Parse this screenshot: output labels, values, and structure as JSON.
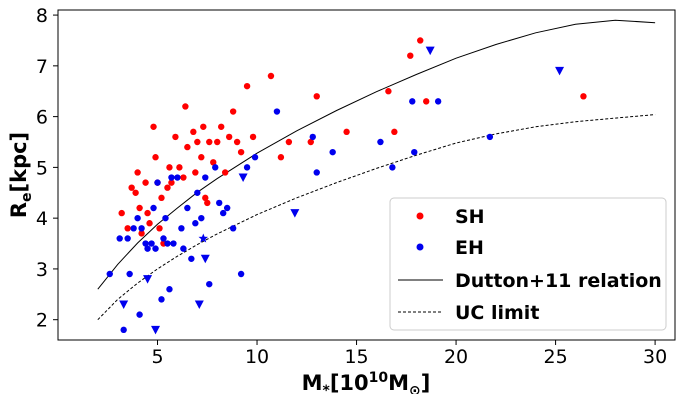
{
  "chart_data": {
    "type": "scatter",
    "xlabel_main": "M",
    "xlabel_sub": "*",
    "xlabel_rest": "[10",
    "xlabel_sup": "10",
    "xlabel_unit": "M",
    "xlabel_unit_sub": "⊙",
    "xlabel_end": "]",
    "ylabel_main": "R",
    "ylabel_sub": "e",
    "ylabel_rest": "[kpc]",
    "xlim": [
      0,
      31
    ],
    "ylim": [
      1.6,
      8.1
    ],
    "x_ticks": [
      "5",
      "10",
      "15",
      "20",
      "25",
      "30"
    ],
    "y_ticks": [
      "2",
      "3",
      "4",
      "5",
      "6",
      "7",
      "8"
    ],
    "x_tick_values": [
      5,
      10,
      15,
      20,
      25,
      30
    ],
    "y_tick_values": [
      2,
      3,
      4,
      5,
      6,
      7,
      8
    ],
    "colors": {
      "SH": "#ff0000",
      "EH": "#0000ee",
      "line": "#000000"
    },
    "legend_position": "lower-right",
    "legend": [
      {
        "label": "SH",
        "marker": "dot",
        "color": "#ff0000"
      },
      {
        "label": "EH",
        "marker": "dot",
        "color": "#0000ee"
      },
      {
        "label": "Dutton+11 relation",
        "marker": "solid-line",
        "color": "#000000"
      },
      {
        "label": "UC limit",
        "marker": "dashed-line",
        "color": "#000000"
      }
    ],
    "series": [
      {
        "name": "SH",
        "marker": "dot",
        "points": [
          [
            3.2,
            4.1
          ],
          [
            3.5,
            3.8
          ],
          [
            3.7,
            4.6
          ],
          [
            3.9,
            4.5
          ],
          [
            4.0,
            4.9
          ],
          [
            4.1,
            4.2
          ],
          [
            4.2,
            3.7
          ],
          [
            4.4,
            4.7
          ],
          [
            4.5,
            4.1
          ],
          [
            4.6,
            3.9
          ],
          [
            4.8,
            5.8
          ],
          [
            4.9,
            5.2
          ],
          [
            5.0,
            4.7
          ],
          [
            5.1,
            3.8
          ],
          [
            5.2,
            4.4
          ],
          [
            5.3,
            3.5
          ],
          [
            5.5,
            4.6
          ],
          [
            5.6,
            5.0
          ],
          [
            5.7,
            4.7
          ],
          [
            5.9,
            5.6
          ],
          [
            6.1,
            5.0
          ],
          [
            6.3,
            4.8
          ],
          [
            6.4,
            6.2
          ],
          [
            6.5,
            5.4
          ],
          [
            6.8,
            5.7
          ],
          [
            6.9,
            4.9
          ],
          [
            7.0,
            5.5
          ],
          [
            7.2,
            5.2
          ],
          [
            7.3,
            5.8
          ],
          [
            7.4,
            4.4
          ],
          [
            7.5,
            4.3
          ],
          [
            7.6,
            5.5
          ],
          [
            7.8,
            5.1
          ],
          [
            8.0,
            5.5
          ],
          [
            8.2,
            5.8
          ],
          [
            8.4,
            4.9
          ],
          [
            8.6,
            5.6
          ],
          [
            8.8,
            6.1
          ],
          [
            9.0,
            5.5
          ],
          [
            9.2,
            5.3
          ],
          [
            9.5,
            6.6
          ],
          [
            9.8,
            5.6
          ],
          [
            10.7,
            6.8
          ],
          [
            11.2,
            5.2
          ],
          [
            11.6,
            5.5
          ],
          [
            12.7,
            5.5
          ],
          [
            13.0,
            6.4
          ],
          [
            14.5,
            5.7
          ],
          [
            16.6,
            6.5
          ],
          [
            16.9,
            5.7
          ],
          [
            17.7,
            7.2
          ],
          [
            18.2,
            7.5
          ],
          [
            18.5,
            6.3
          ],
          [
            26.4,
            6.4
          ]
        ]
      },
      {
        "name": "EH",
        "marker": "dot",
        "points": [
          [
            2.6,
            2.9
          ],
          [
            3.1,
            3.6
          ],
          [
            3.3,
            1.8
          ],
          [
            3.5,
            3.6
          ],
          [
            3.6,
            2.9
          ],
          [
            3.8,
            3.8
          ],
          [
            4.0,
            4.0
          ],
          [
            4.1,
            2.1
          ],
          [
            4.2,
            3.8
          ],
          [
            4.4,
            3.5
          ],
          [
            4.5,
            3.4
          ],
          [
            4.7,
            3.5
          ],
          [
            4.8,
            4.2
          ],
          [
            4.9,
            3.4
          ],
          [
            5.0,
            4.7
          ],
          [
            5.2,
            2.4
          ],
          [
            5.3,
            3.6
          ],
          [
            5.4,
            4.0
          ],
          [
            5.5,
            3.5
          ],
          [
            5.6,
            2.6
          ],
          [
            5.7,
            4.8
          ],
          [
            5.8,
            3.5
          ],
          [
            6.0,
            4.8
          ],
          [
            6.2,
            3.8
          ],
          [
            6.3,
            3.4
          ],
          [
            6.5,
            4.2
          ],
          [
            6.7,
            3.2
          ],
          [
            6.9,
            3.9
          ],
          [
            7.0,
            4.5
          ],
          [
            7.2,
            4.0
          ],
          [
            7.4,
            4.8
          ],
          [
            7.6,
            2.7
          ],
          [
            7.9,
            5.0
          ],
          [
            8.1,
            4.3
          ],
          [
            8.3,
            4.1
          ],
          [
            8.5,
            4.2
          ],
          [
            8.8,
            3.8
          ],
          [
            9.2,
            2.9
          ],
          [
            9.5,
            5.0
          ],
          [
            9.9,
            5.2
          ],
          [
            11.0,
            6.1
          ],
          [
            12.8,
            5.6
          ],
          [
            13.0,
            4.9
          ],
          [
            13.8,
            5.3
          ],
          [
            16.2,
            5.5
          ],
          [
            16.8,
            5.0
          ],
          [
            17.8,
            6.3
          ],
          [
            17.9,
            5.3
          ],
          [
            19.1,
            6.3
          ],
          [
            21.7,
            5.6
          ]
        ]
      },
      {
        "name": "EH",
        "marker": "triangle-down",
        "points": [
          [
            3.3,
            2.3
          ],
          [
            4.5,
            2.8
          ],
          [
            4.9,
            1.8
          ],
          [
            7.1,
            2.3
          ],
          [
            7.4,
            3.2
          ],
          [
            9.3,
            4.8
          ],
          [
            11.9,
            4.1
          ],
          [
            18.7,
            7.3
          ],
          [
            25.2,
            6.9
          ]
        ]
      },
      {
        "name": "EH",
        "marker": "star",
        "points": [
          [
            7.3,
            3.6
          ]
        ]
      },
      {
        "name": "Dutton+11 relation",
        "style": "solid",
        "points": [
          [
            2.0,
            2.6
          ],
          [
            3.0,
            3.09
          ],
          [
            4.0,
            3.51
          ],
          [
            5.0,
            3.88
          ],
          [
            6.0,
            4.2
          ],
          [
            7.0,
            4.51
          ],
          [
            8.0,
            4.78
          ],
          [
            10.0,
            5.28
          ],
          [
            12.0,
            5.72
          ],
          [
            14.0,
            6.12
          ],
          [
            16.0,
            6.49
          ],
          [
            18.0,
            6.83
          ],
          [
            20.0,
            7.15
          ],
          [
            22.0,
            7.42
          ],
          [
            24.0,
            7.65
          ],
          [
            26.0,
            7.82
          ],
          [
            28.0,
            7.9
          ],
          [
            30.0,
            7.85
          ]
        ]
      },
      {
        "name": "UC limit",
        "style": "dashed",
        "points": [
          [
            2.0,
            2.0
          ],
          [
            3.0,
            2.4
          ],
          [
            4.0,
            2.72
          ],
          [
            5.0,
            3.0
          ],
          [
            6.0,
            3.25
          ],
          [
            7.0,
            3.48
          ],
          [
            8.0,
            3.69
          ],
          [
            10.0,
            4.07
          ],
          [
            12.0,
            4.4
          ],
          [
            14.0,
            4.7
          ],
          [
            16.0,
            4.98
          ],
          [
            18.0,
            5.24
          ],
          [
            20.0,
            5.48
          ],
          [
            22.0,
            5.66
          ],
          [
            24.0,
            5.8
          ],
          [
            26.0,
            5.9
          ],
          [
            28.0,
            5.97
          ],
          [
            30.0,
            6.04
          ]
        ]
      }
    ]
  }
}
